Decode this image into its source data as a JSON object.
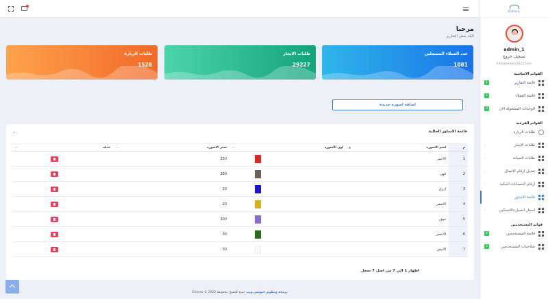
{
  "app": {
    "logo_text": "Elmera"
  },
  "greeting": {
    "title": "مرحبا",
    "subtitle": "اليك بعض التقارير"
  },
  "cards": [
    {
      "title": "عدد العملاء المسجلين",
      "value": "1081"
    },
    {
      "title": "طلبات الايجار",
      "value": "29227"
    },
    {
      "title": "طلبات الزيارة",
      "value": "1528"
    }
  ],
  "add_button": "اضافة اسورة جديدة",
  "table": {
    "title": "قائمة الاساور الحالية",
    "headers": {
      "num": "م",
      "name": "اسم الاسورة",
      "color": "لون الاسورة",
      "price": "سعر الاسورة",
      "delete": "حذف"
    },
    "rows": [
      {
        "num": "1",
        "name": "الاحمر",
        "color": "#d22b2b",
        "price": "250"
      },
      {
        "num": "2",
        "name": "قهي",
        "color": "#6b625e",
        "price": "280"
      },
      {
        "num": "3",
        "name": "ازرق",
        "color": "#1a17c4",
        "price": "20"
      },
      {
        "num": "4",
        "name": "الاصفر",
        "color": "#d6b020",
        "price": "20"
      },
      {
        "num": "5",
        "name": "موف",
        "color": "#8b6cc4",
        "price": "200"
      },
      {
        "num": "6",
        "name": "الاخضر",
        "color": "#2b6b1f",
        "price": "30"
      },
      {
        "num": "7",
        "name": "الابيض",
        "color": "#f8f8f8",
        "price": "30"
      }
    ],
    "info": "اظهار 1 الي 7 من اصل 7 سجل"
  },
  "sidebar": {
    "username": "admin_1",
    "logout": "تسجيل خروج",
    "email": "info@elmera2022.com",
    "main_title": "القوائم الاساسية",
    "main_items": [
      {
        "label": "قائمة التقارير",
        "badge": "1"
      },
      {
        "label": "قائمة العملاء",
        "badge": "2"
      },
      {
        "label": "الوحدات المشغولة الان",
        "badge": "3"
      }
    ],
    "sub_title": "القوائم الفرعية",
    "sub_items": [
      {
        "label": "طلبات الزيارة"
      },
      {
        "label": "طلبات الايجار"
      },
      {
        "label": "طلبات الصيانة"
      },
      {
        "label": "تعديل ارقام الاتصال"
      },
      {
        "label": "ارقام الحسابات البنكية"
      },
      {
        "label": "قائمة الاساور"
      },
      {
        "label": "اسعار السيارة/التسكين"
      }
    ],
    "users_title": "قوائم المستخدمين",
    "users_items": [
      {
        "label": "قائمة المستخدمين",
        "badge": "4"
      },
      {
        "label": "صلاحيات المستخدمين",
        "badge": "5"
      }
    ]
  },
  "footer": {
    "brand": "برمجة وتطوير فيونشر ويب",
    "rest": "جميع الحقوق محفوظة Elmera © 2022"
  }
}
